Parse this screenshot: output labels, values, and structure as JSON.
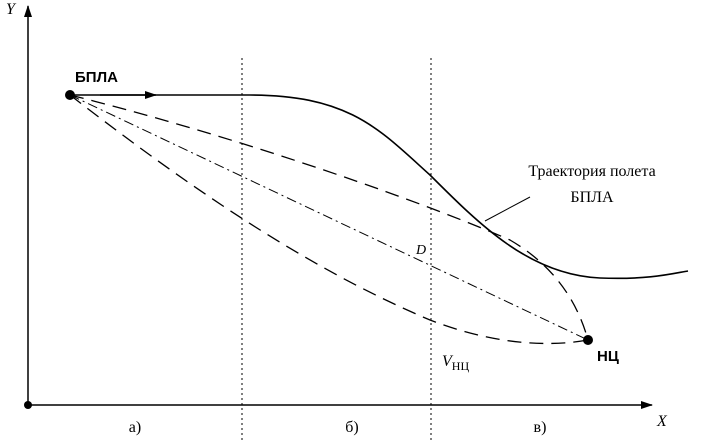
{
  "axes": {
    "y": "Y",
    "x": "X"
  },
  "points": {
    "uav": "БПЛА",
    "target": "НЦ"
  },
  "labels": {
    "trajectory": [
      "Траектория полета",
      "БПЛА"
    ],
    "distance": "D",
    "velocity": {
      "symbol": "V",
      "subscript": "НЦ"
    }
  },
  "zones": [
    "а)",
    "б)",
    "в)"
  ]
}
